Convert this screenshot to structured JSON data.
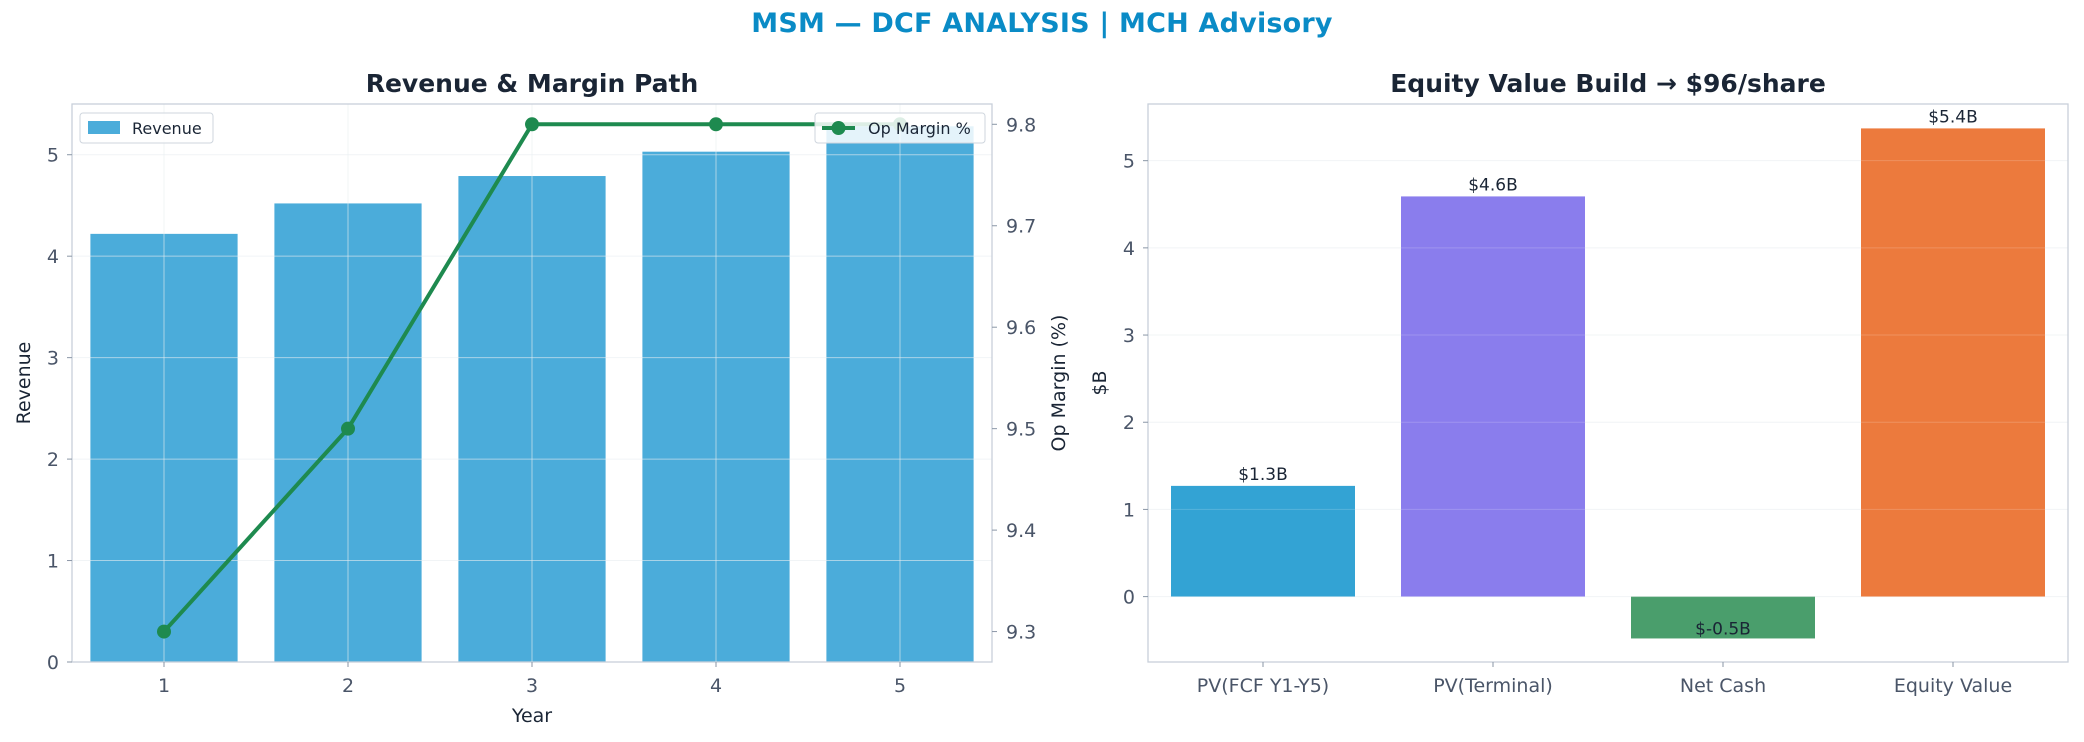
{
  "page_title": "MSM — DCF ANALYSIS | MCH Advisory",
  "colors": {
    "title": "#0a8bc6",
    "revenue_bar": "#4bacda",
    "margin_line": "#1e8a4f",
    "axis_text": "#4a5568",
    "panel_title": "#1a2535",
    "spine": "#c8d0da",
    "grid": "#e8ecf0"
  },
  "chart_data": [
    {
      "type": "bar",
      "title": "Revenue & Margin Path",
      "xlabel": "Year",
      "ylabel": "Revenue",
      "y2label": "Op Margin (%)",
      "categories": [
        "1",
        "2",
        "3",
        "4",
        "5"
      ],
      "ylim": [
        0,
        5.5
      ],
      "yticks": [
        0,
        1,
        2,
        3,
        4,
        5
      ],
      "y2lim": [
        9.27,
        9.82
      ],
      "y2ticks": [
        9.3,
        9.4,
        9.5,
        9.6,
        9.7,
        9.8
      ],
      "grid": true,
      "series": [
        {
          "name": "Revenue",
          "kind": "bar",
          "axis": "left",
          "values": [
            4.22,
            4.52,
            4.79,
            5.03,
            5.28
          ],
          "legend": "top-left"
        },
        {
          "name": "Op Margin %",
          "kind": "line",
          "axis": "right",
          "values": [
            9.3,
            9.5,
            9.8,
            9.8,
            9.8
          ],
          "legend": "top-right"
        }
      ]
    },
    {
      "type": "bar",
      "title": "Equity Value Build → $96/share",
      "xlabel": "",
      "ylabel": "$B",
      "categories": [
        "PV(FCF Y1-Y5)",
        "PV(Terminal)",
        "Net Cash",
        "Equity Value"
      ],
      "values": [
        1.27,
        4.59,
        -0.48,
        5.37
      ],
      "labels": [
        "$1.3B",
        "$4.6B",
        "$-0.5B",
        "$5.4B"
      ],
      "colors": [
        "#33a3d4",
        "#8a7ded",
        "#4a9e6c",
        "#ec7a3d"
      ],
      "ylim": [
        -0.75,
        5.65
      ],
      "yticks": [
        0,
        1,
        2,
        3,
        4,
        5
      ],
      "grid": true
    }
  ]
}
